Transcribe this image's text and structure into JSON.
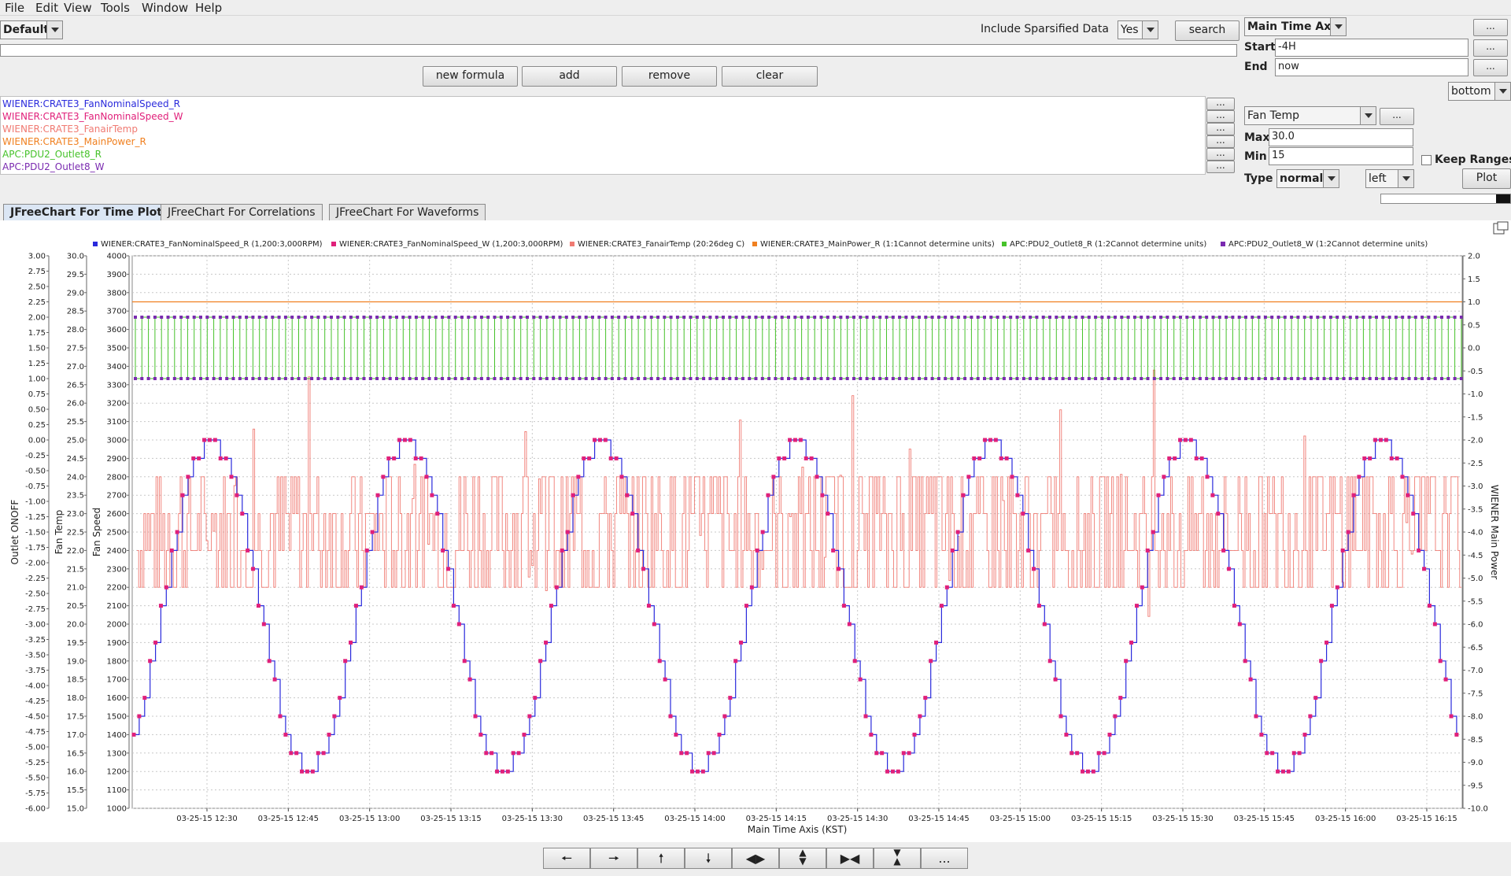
{
  "menu": [
    "File",
    "Edit",
    "View",
    "Tools",
    "Window",
    "Help"
  ],
  "toolbar": {
    "profile": "Default",
    "sparsified_label": "Include Sparsified Data",
    "sparsified_value": "Yes",
    "search_label": "search"
  },
  "formula_buttons": {
    "new_formula": "new formula",
    "add": "add",
    "remove": "remove",
    "clear": "clear"
  },
  "pv_list": [
    {
      "name": "WIENER:CRATE3_FanNominalSpeed_R",
      "color": "#2a2adc"
    },
    {
      "name": "WIENER:CRATE3_FanNominalSpeed_W",
      "color": "#e0207a"
    },
    {
      "name": "WIENER:CRATE3_FanairTemp",
      "color": "#f07a72"
    },
    {
      "name": "WIENER:CRATE3_MainPower_R",
      "color": "#f08020"
    },
    {
      "name": "APC:PDU2_Outlet8_R",
      "color": "#46c22a"
    },
    {
      "name": "APC:PDU2_Outlet8_W",
      "color": "#7a2ab0"
    }
  ],
  "time_axis": {
    "axis_name": "Main Time Axis",
    "start_label": "Start",
    "start_value": "-4H",
    "end_label": "End",
    "end_value": "now",
    "position": "bottom",
    "more": "..."
  },
  "value_axis": {
    "selected": "Fan Temp",
    "max_label": "Max",
    "max_value": "30.0",
    "min_label": "Min",
    "min_value": "15",
    "keep_ranges_label": "Keep Ranges",
    "type_label": "Type",
    "type_value": "normal",
    "side_value": "left",
    "plot_label": "Plot"
  },
  "tabs": [
    "JFreeChart For Time Plots",
    "JFreeChart For Correlations",
    "JFreeChart For Waveforms"
  ],
  "nav_more": "...",
  "colors": {
    "speed_r": "#2a2adc",
    "speed_w": "#e0207a",
    "temp": "#f07a72",
    "power": "#f08020",
    "outlet_r": "#46c22a",
    "outlet_w": "#7a2ab0"
  },
  "chart_data": {
    "type": "line",
    "xlabel": "Main Time Axis (KST)",
    "x_ticks": [
      "03-25-15 12:30",
      "03-25-15 12:45",
      "03-25-15 13:00",
      "03-25-15 13:15",
      "03-25-15 13:30",
      "03-25-15 13:45",
      "03-25-15 14:00",
      "03-25-15 14:15",
      "03-25-15 14:30",
      "03-25-15 14:45",
      "03-25-15 15:00",
      "03-25-15 15:15",
      "03-25-15 15:30",
      "03-25-15 15:45",
      "03-25-15 16:00",
      "03-25-15 16:15"
    ],
    "legend": [
      "WIENER:CRATE3_FanNominalSpeed_R (1,200:3,000RPM)",
      "WIENER:CRATE3_FanNominalSpeed_W (1,200:3,000RPM)",
      "WIENER:CRATE3_FanairTemp (20:26deg C)",
      "WIENER:CRATE3_MainPower_R (1:1Cannot determine units)",
      "APC:PDU2_Outlet8_R (1:2Cannot determine units)",
      "APC:PDU2_Outlet8_W (1:2Cannot determine units)"
    ],
    "legend_position": "top",
    "grid": true,
    "axes": {
      "outlet": {
        "label": "Outlet ONOFF",
        "min": -6.0,
        "max": 3.0,
        "ticks": [
          "3.00",
          "2.75",
          "2.50",
          "2.25",
          "2.00",
          "1.75",
          "1.50",
          "1.25",
          "1.00",
          "0.75",
          "0.50",
          "0.25",
          "0.00",
          "-0.25",
          "-0.50",
          "-0.75",
          "-1.00",
          "-1.25",
          "-1.50",
          "-1.75",
          "-2.00",
          "-2.25",
          "-2.50",
          "-2.75",
          "-3.00",
          "-3.25",
          "-3.50",
          "-3.75",
          "-4.00",
          "-4.25",
          "-4.50",
          "-4.75",
          "-5.00",
          "-5.25",
          "-5.50",
          "-5.75",
          "-6.00"
        ]
      },
      "temp": {
        "label": "Fan Temp",
        "min": 15.0,
        "max": 30.0,
        "ticks": [
          "30.0",
          "29.5",
          "29.0",
          "28.5",
          "28.0",
          "27.5",
          "27.0",
          "26.5",
          "26.0",
          "25.5",
          "25.0",
          "24.5",
          "24.0",
          "23.5",
          "23.0",
          "22.5",
          "22.0",
          "21.5",
          "21.0",
          "20.5",
          "20.0",
          "19.5",
          "19.0",
          "18.5",
          "18.0",
          "17.5",
          "17.0",
          "16.5",
          "16.0",
          "15.5",
          "15.0"
        ]
      },
      "speed": {
        "label": "Fan Speed",
        "min": 1000,
        "max": 4000,
        "ticks": [
          "4000",
          "3900",
          "3800",
          "3700",
          "3600",
          "3500",
          "3400",
          "3300",
          "3200",
          "3100",
          "3000",
          "2900",
          "2800",
          "2700",
          "2600",
          "2500",
          "2400",
          "2300",
          "2200",
          "2100",
          "2000",
          "1900",
          "1800",
          "1700",
          "1600",
          "1500",
          "1400",
          "1300",
          "1200",
          "1100",
          "1000"
        ]
      },
      "power": {
        "label": "WIENER Main Power",
        "min": -10.0,
        "max": 2.0,
        "ticks": [
          "2.0",
          "1.5",
          "1.0",
          "0.5",
          "0.0",
          "-0.5",
          "-1.0",
          "-1.5",
          "-2.0",
          "-2.5",
          "-3.0",
          "-3.5",
          "-4.0",
          "-4.5",
          "-5.0",
          "-5.5",
          "-6.0",
          "-6.5",
          "-7.0",
          "-7.5",
          "-8.0",
          "-8.5",
          "-9.0",
          "-9.5",
          "-10.0"
        ]
      }
    },
    "series": [
      {
        "name": "WIENER:CRATE3_FanNominalSpeed_R",
        "axis": "speed",
        "shape": "sine-staircase",
        "min": 1200,
        "max": 3000,
        "step": 100,
        "period_min": 36
      },
      {
        "name": "WIENER:CRATE3_FanNominalSpeed_W",
        "axis": "speed",
        "shape": "sine-staircase",
        "min": 1200,
        "max": 3000,
        "step": 100,
        "period_min": 36
      },
      {
        "name": "WIENER:CRATE3_FanairTemp",
        "axis": "temp",
        "band_values": [
          21.0,
          22.0,
          23.0,
          24.0
        ]
      },
      {
        "name": "WIENER:CRATE3_MainPower_R",
        "axis": "power",
        "value": 1.0
      },
      {
        "name": "APC:PDU2_Outlet8_R",
        "axis": "outlet",
        "toggle_values": [
          1.0,
          2.0
        ]
      },
      {
        "name": "APC:PDU2_Outlet8_W",
        "axis": "outlet",
        "toggle_values": [
          1.0,
          2.0
        ]
      }
    ]
  }
}
